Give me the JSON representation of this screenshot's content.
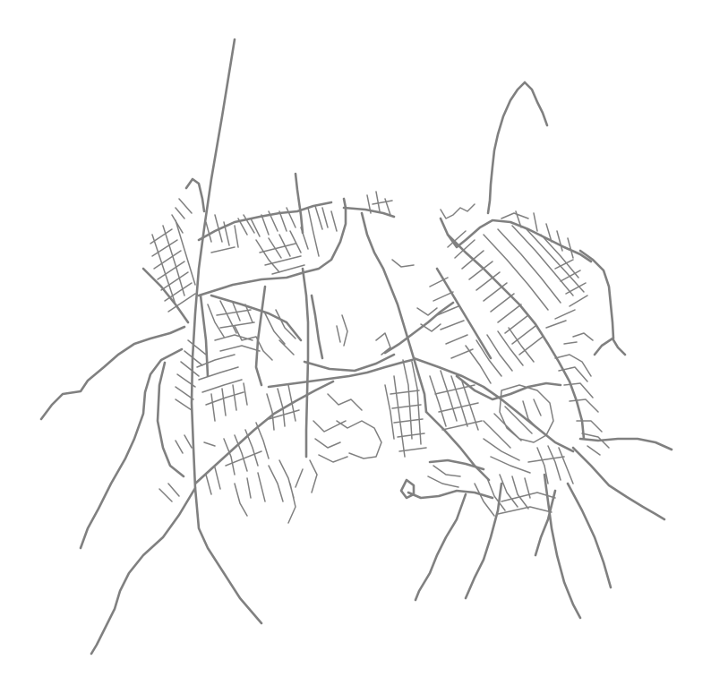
{
  "map": {
    "kind": "road-network",
    "road_color": "#808080",
    "background_color": "#ffffff"
  }
}
